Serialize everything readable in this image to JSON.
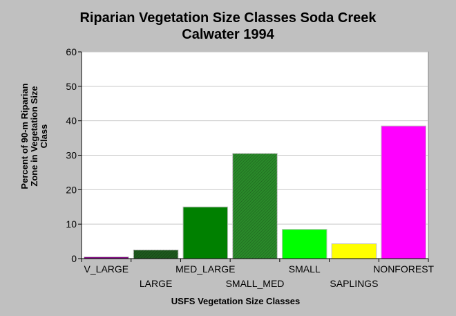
{
  "chart_data": {
    "type": "bar",
    "title_lines": [
      "Riparian Vegetation Size Classes Soda Creek",
      "Calwater 1994"
    ],
    "xlabel": "USFS Vegetation Size Classes",
    "ylabel_lines": [
      "Percent of 90-m Riparian",
      "Zone in Vegetation Size",
      "Class"
    ],
    "categories": [
      "V_LARGE",
      "LARGE",
      "MED_LARGE",
      "SMALL_MED",
      "SMALL",
      "SAPLINGS",
      "NONFOREST"
    ],
    "values": [
      0.5,
      2.5,
      15.0,
      30.5,
      8.5,
      4.3,
      38.5
    ],
    "colors": [
      "#800080",
      "#1e5a1e",
      "#008000",
      "#2a8a2a",
      "#00ff00",
      "#ffff00",
      "#ff00ff"
    ],
    "hatched": [
      false,
      true,
      false,
      true,
      false,
      false,
      false
    ],
    "ylim": [
      0,
      60
    ],
    "yticks": [
      0,
      10,
      20,
      30,
      40,
      50,
      60
    ],
    "grid": true,
    "legend": "none"
  }
}
